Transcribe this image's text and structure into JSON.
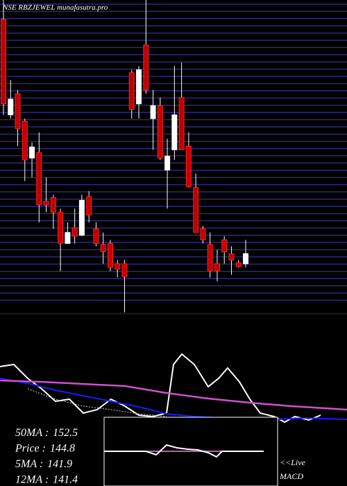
{
  "chart_data": {
    "type": "candlestick",
    "title": "NSE RBZJEWEL munafasutra.pro",
    "ylim": [
      138,
      172
    ],
    "up_color": "#ffffff",
    "down_color": "#c00000",
    "open": [
      169.9,
      159.5,
      161.8,
      158.8,
      154.8,
      155.4,
      150.1,
      150.5,
      148.9,
      145.5,
      147.2,
      146.4,
      150.6,
      147.1,
      145.4,
      145.5,
      143.3,
      143.3,
      164.1,
      160.7,
      167.1,
      159.1,
      160.5,
      153.5,
      155.7,
      161.4,
      156.1,
      151.6,
      147.1,
      145.4,
      143.3,
      145.9,
      144.4,
      143.4,
      143.3
    ],
    "high": [
      172.0,
      163.3,
      162.2,
      159.1,
      156.5,
      157.6,
      152.7,
      150.8,
      149.3,
      147.8,
      149.3,
      150.8,
      151.2,
      147.8,
      146.7,
      145.9,
      143.7,
      143.7,
      164.4,
      164.8,
      172.0,
      162.2,
      161.4,
      156.9,
      164.8,
      165.2,
      157.6,
      153.1,
      147.4,
      146.7,
      144.8,
      146.3,
      145.2,
      143.7,
      145.9
    ],
    "low": [
      159.5,
      159.1,
      156.1,
      152.3,
      152.7,
      147.8,
      148.9,
      147.1,
      142.5,
      145.5,
      145.5,
      146.3,
      147.8,
      145.2,
      143.3,
      142.5,
      141.8,
      138.0,
      159.1,
      159.1,
      161.8,
      155.7,
      154.6,
      149.3,
      154.6,
      155.7,
      151.6,
      146.7,
      145.5,
      141.8,
      141.4,
      143.3,
      142.1,
      142.9,
      142.9
    ],
    "close": [
      160.7,
      161.2,
      158.0,
      154.6,
      156.0,
      149.7,
      149.7,
      148.9,
      145.5,
      146.7,
      146.3,
      150.2,
      148.6,
      145.5,
      144.6,
      142.9,
      142.7,
      141.9,
      160.1,
      164.4,
      162.2,
      160.5,
      154.8,
      155.0,
      159.5,
      155.7,
      151.7,
      146.7,
      145.9,
      142.5,
      142.5,
      144.6,
      143.7,
      143.0,
      144.4
    ]
  },
  "indicators": [
    {
      "label": "50MA :",
      "value": 152.5
    },
    {
      "label": "Price  :",
      "value": 144.8
    },
    {
      "label": "5MA :",
      "value": 141.9
    },
    {
      "label": "12MA :",
      "value": 141.4
    }
  ],
  "live_link": "<<Live",
  "macd_label": "MACD"
}
